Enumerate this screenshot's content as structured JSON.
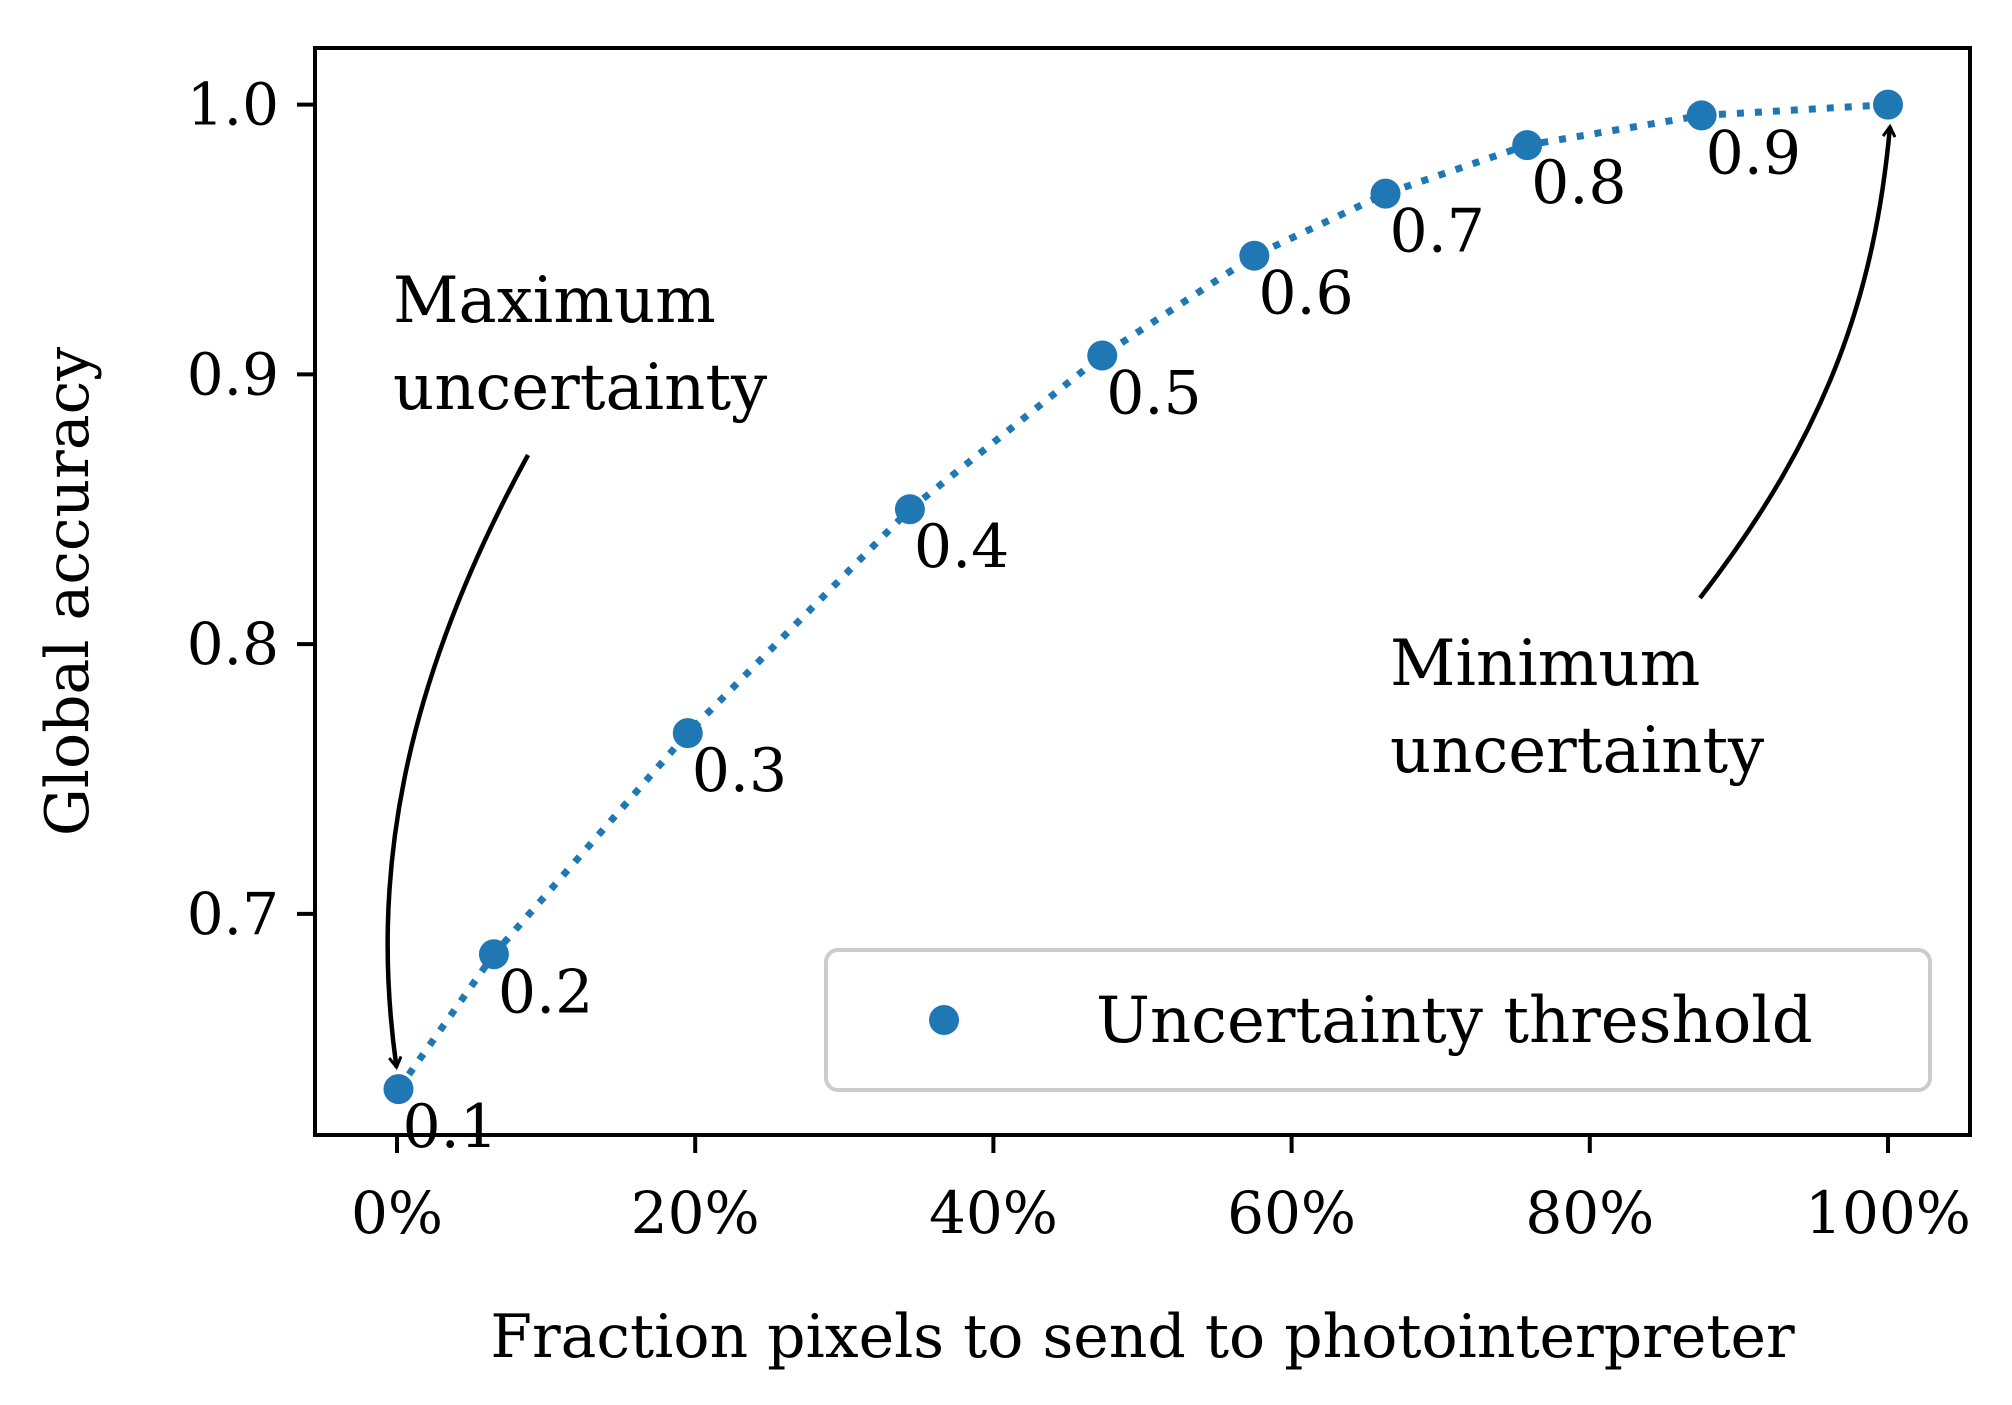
{
  "chart_data": {
    "type": "scatter",
    "title": "",
    "xlabel": "Fraction pixels to send to photointerpreter",
    "ylabel": "Global accuracy",
    "xlim": [
      -5.5,
      105.5
    ],
    "ylim": [
      0.618,
      1.021
    ],
    "x_ticks": [
      0,
      20,
      40,
      60,
      80,
      100
    ],
    "x_tick_labels": [
      "0%",
      "20%",
      "40%",
      "60%",
      "80%",
      "100%"
    ],
    "y_ticks": [
      0.7,
      0.8,
      0.9,
      1.0
    ],
    "y_tick_labels": [
      "0.7",
      "0.8",
      "0.9",
      "1.0"
    ],
    "grid": false,
    "legend_position": "bottom-right",
    "color": "#1f77b4",
    "series": [
      {
        "name": "Uncertainty threshold",
        "x": [
          0.1,
          6.5,
          19.5,
          34.4,
          47.3,
          57.5,
          66.3,
          75.8,
          87.5,
          100
        ],
        "y": [
          0.635,
          0.685,
          0.767,
          0.85,
          0.907,
          0.944,
          0.967,
          0.985,
          0.996,
          1.0
        ],
        "point_labels": [
          "0.1",
          "0.2",
          "0.3",
          "0.4",
          "0.5",
          "0.6",
          "0.7",
          "0.8",
          "0.9",
          ""
        ]
      }
    ],
    "annotations": [
      {
        "lines": [
          "Maximum",
          "uncertainty"
        ],
        "target_index": 0
      },
      {
        "lines": [
          "Minimum",
          "uncertainty"
        ],
        "target_index": 9
      }
    ]
  }
}
